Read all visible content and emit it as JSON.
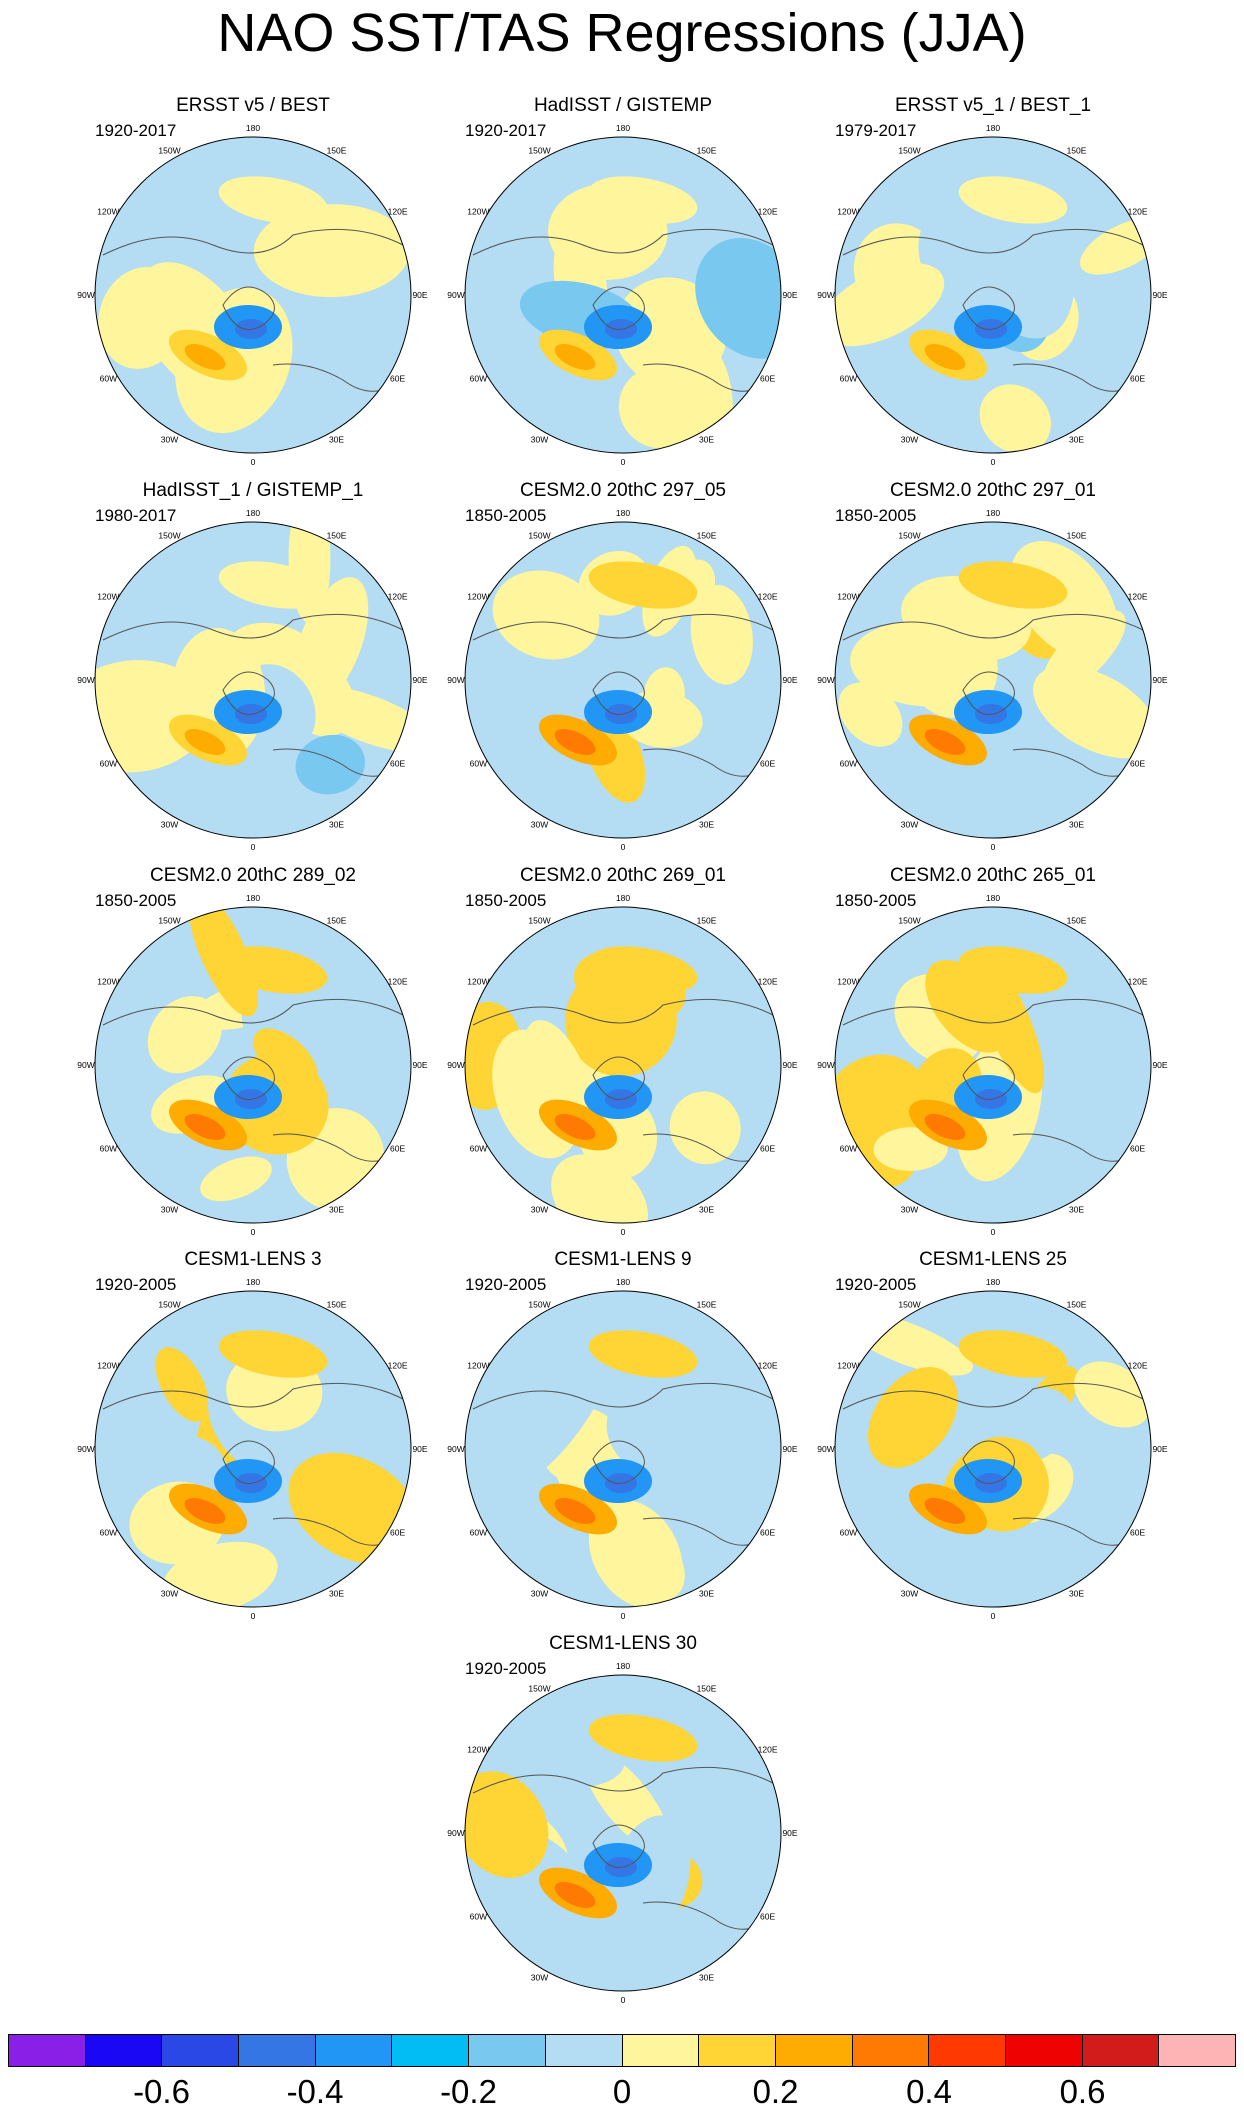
{
  "title": "NAO SST/TAS Regressions (JJA)",
  "longitude_labels": [
    "180",
    "150E",
    "120E",
    "90E",
    "60E",
    "30E",
    "0",
    "30W",
    "60W",
    "90W",
    "120W",
    "150W"
  ],
  "panels": [
    {
      "title": "ERSST v5 / BEST",
      "period": "1920-2017",
      "seed": 11
    },
    {
      "title": "HadISST / GISTEMP",
      "period": "1920-2017",
      "seed": 23
    },
    {
      "title": "ERSST v5_1 / BEST_1",
      "period": "1979-2017",
      "seed": 37
    },
    {
      "title": "HadISST_1 / GISTEMP_1",
      "period": "1980-2017",
      "seed": 41
    },
    {
      "title": "CESM2.0 20thC 297_05",
      "period": "1850-2005",
      "seed": 53
    },
    {
      "title": "CESM2.0 20thC 297_01",
      "period": "1850-2005",
      "seed": 67
    },
    {
      "title": "CESM2.0 20thC 289_02",
      "period": "1850-2005",
      "seed": 71
    },
    {
      "title": "CESM2.0 20thC 269_01",
      "period": "1850-2005",
      "seed": 83
    },
    {
      "title": "CESM2.0 20thC 265_01",
      "period": "1850-2005",
      "seed": 97
    },
    {
      "title": "CESM1-LENS 3",
      "period": "1920-2005",
      "seed": 101
    },
    {
      "title": "CESM1-LENS 9",
      "period": "1920-2005",
      "seed": 113
    },
    {
      "title": "CESM1-LENS 25",
      "period": "1920-2005",
      "seed": 127
    },
    {
      "title": "CESM1-LENS 30",
      "period": "1920-2005",
      "seed": 131
    }
  ],
  "colorbar": {
    "colors": [
      "#8a1fe8",
      "#1a08f4",
      "#2a48e6",
      "#3476e4",
      "#2196f4",
      "#02bcf4",
      "#78c8f0",
      "#b4dcf2",
      "#fef59c",
      "#fed534",
      "#feab02",
      "#fe7a02",
      "#fe3a02",
      "#ee0202",
      "#d21c1c",
      "#feb4b4"
    ],
    "labels": [
      "-0.6",
      "-0.4",
      "-0.2",
      "0",
      "0.2",
      "0.4",
      "0.6"
    ]
  }
}
